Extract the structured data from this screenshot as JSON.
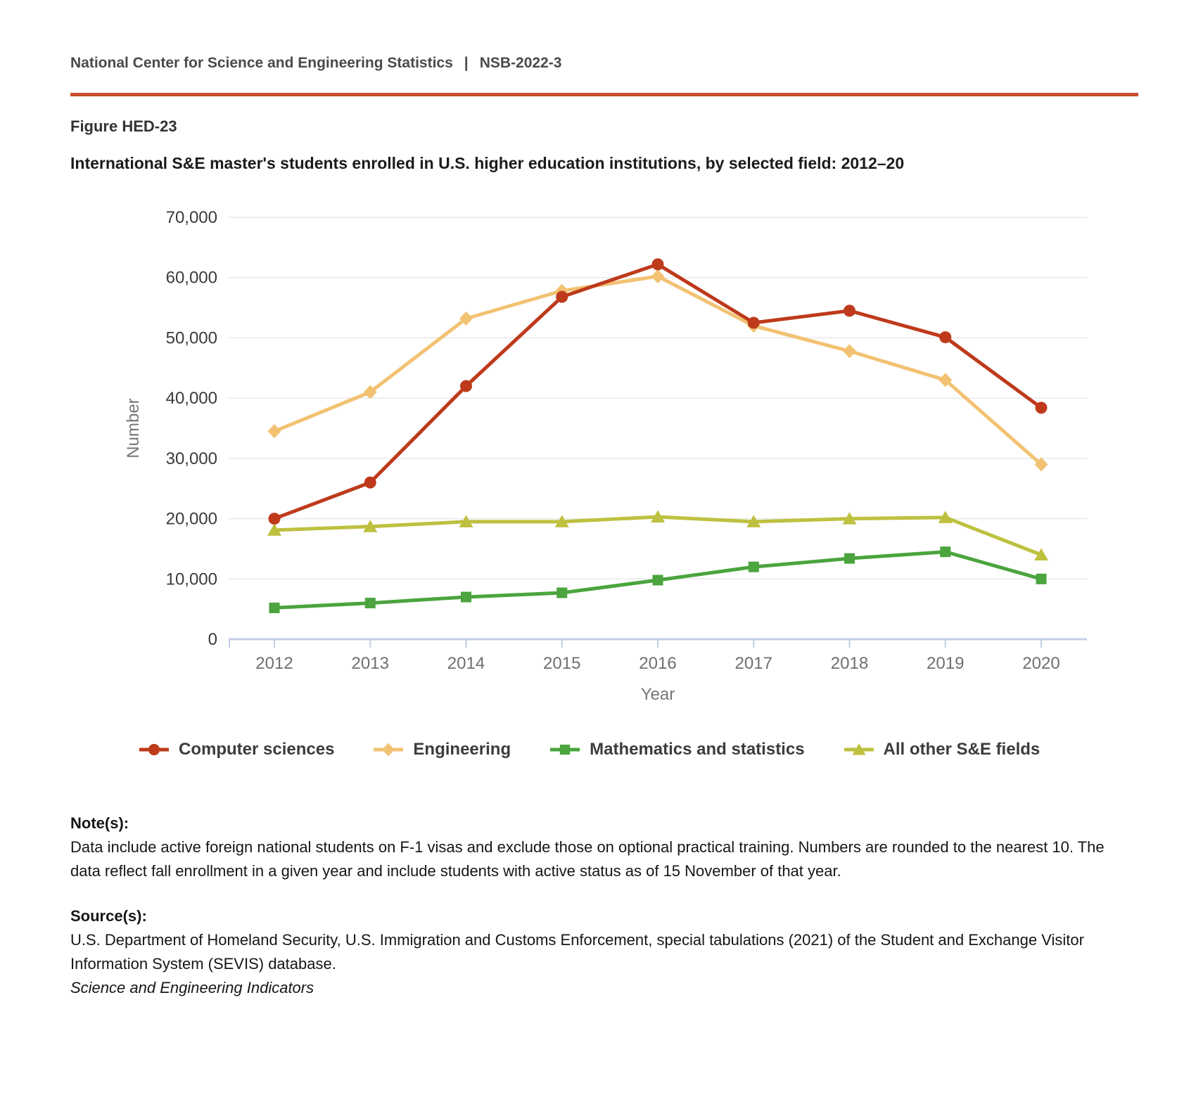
{
  "header": {
    "org": "National Center for Science and Engineering Statistics",
    "separator": "|",
    "doc_number": "NSB-2022-3"
  },
  "figure": {
    "label": "Figure HED-23",
    "title": "International S&E master's students enrolled in U.S. higher education institutions, by selected field: 2012–20"
  },
  "chart_data": {
    "type": "line",
    "x": [
      2012,
      2013,
      2014,
      2015,
      2016,
      2017,
      2018,
      2019,
      2020
    ],
    "xlabel": "Year",
    "ylabel": "Number",
    "ylim": [
      0,
      70000
    ],
    "ytick_step": 10000,
    "grid": true,
    "legend_position": "bottom",
    "series": [
      {
        "name": "Computer sciences",
        "marker": "circle",
        "color": "#BE3A1B",
        "values": [
          20000,
          26000,
          42000,
          56800,
          62200,
          52500,
          54500,
          50100,
          38400
        ]
      },
      {
        "name": "Engineering",
        "marker": "diamond",
        "color": "#F2C272",
        "values": [
          34500,
          41000,
          53200,
          57800,
          60200,
          52000,
          47800,
          43000,
          29000
        ]
      },
      {
        "name": "Mathematics and statistics",
        "marker": "square",
        "color": "#4BA43E",
        "values": [
          5200,
          6000,
          7000,
          7700,
          9800,
          12000,
          13400,
          14500,
          10000
        ]
      },
      {
        "name": "All other S&E fields",
        "marker": "triangle",
        "color": "#BDC13F",
        "values": [
          18100,
          18700,
          19500,
          19500,
          20300,
          19500,
          20000,
          20200,
          14000
        ]
      }
    ]
  },
  "notes": {
    "label": "Note(s):",
    "text": "Data include active foreign national students on F-1 visas and exclude those on optional practical training. Numbers are rounded to the nearest 10. The data reflect fall enrollment in a given year and include students with active status as of 15 November of that year."
  },
  "sources": {
    "label": "Source(s):",
    "text": "U.S. Department of Homeland Security, U.S. Immigration and Customs Enforcement, special tabulations (2021) of the Student and Exchange Visitor Information System (SEVIS) database."
  },
  "footer": {
    "text": "Science and Engineering Indicators"
  },
  "colors": {
    "divider": "#C8502E",
    "grid": "#E9E9E9",
    "axis": "#C3CDE6",
    "y_tick_label": "#3B3B3B",
    "x_tick_label": "#6F6F6F",
    "axis_title": "#767676"
  }
}
